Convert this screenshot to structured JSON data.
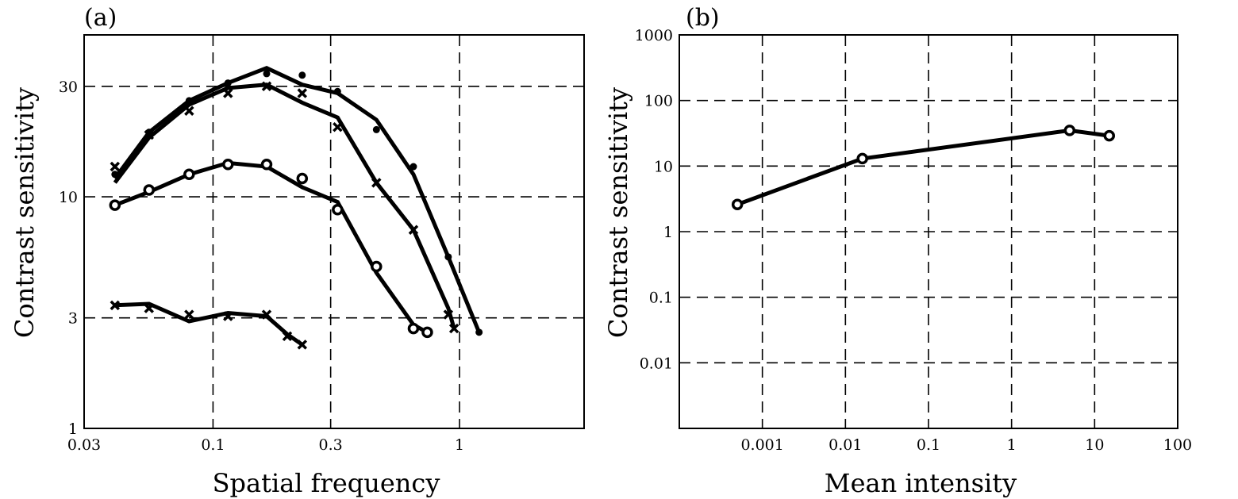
{
  "chart_data": [
    {
      "panel_label": "(a)",
      "type": "line",
      "xlabel": "Spatial frequency",
      "ylabel": "Contrast sensitivity",
      "xscale": "log",
      "yscale": "log",
      "xlim": [
        0.03,
        3.2
      ],
      "ylim": [
        1,
        50
      ],
      "x_ticks": [
        0.03,
        0.1,
        0.3,
        1
      ],
      "x_tick_labels": [
        "0.03",
        "0.1",
        "0.3",
        "1"
      ],
      "y_ticks": [
        1,
        3,
        10,
        30
      ],
      "y_tick_labels": [
        "1",
        "3",
        "10",
        "30"
      ],
      "grid": true,
      "series": [
        {
          "marker": "dot",
          "line_x": [
            0.04,
            0.055,
            0.08,
            0.115,
            0.165,
            0.23,
            0.32,
            0.46,
            0.65,
            0.9,
            1.2
          ],
          "line_y": [
            12,
            19,
            26,
            31,
            36,
            30.5,
            28,
            21.5,
            12.5,
            5.5,
            2.6
          ],
          "points_x": [
            0.04,
            0.055,
            0.08,
            0.115,
            0.165,
            0.23,
            0.32,
            0.46,
            0.65,
            0.9,
            1.2
          ],
          "points_y": [
            12.5,
            19,
            26,
            31,
            34,
            33.5,
            28.5,
            19.5,
            13.5,
            5.5,
            2.6
          ]
        },
        {
          "marker": "x",
          "line_x": [
            0.04,
            0.055,
            0.08,
            0.115,
            0.165,
            0.23,
            0.32,
            0.46,
            0.65,
            0.9,
            0.95
          ],
          "line_y": [
            11.5,
            18,
            25,
            29.5,
            30.5,
            25.5,
            22,
            11.5,
            7.2,
            3.3,
            2.7
          ],
          "points_x": [
            0.04,
            0.055,
            0.08,
            0.115,
            0.165,
            0.23,
            0.32,
            0.46,
            0.65,
            0.9,
            0.95
          ],
          "points_y": [
            13.5,
            18.5,
            23.5,
            28,
            30,
            28,
            20,
            11.5,
            7.2,
            3.1,
            2.7
          ]
        },
        {
          "marker": "circle",
          "line_x": [
            0.04,
            0.055,
            0.08,
            0.115,
            0.165,
            0.23,
            0.32,
            0.46,
            0.65,
            0.74
          ],
          "line_y": [
            9.2,
            10.5,
            12.5,
            14,
            13.5,
            11,
            9.5,
            4.7,
            2.8,
            2.6
          ],
          "points_x": [
            0.04,
            0.055,
            0.08,
            0.115,
            0.165,
            0.23,
            0.32,
            0.46,
            0.65,
            0.74
          ],
          "points_y": [
            9.2,
            10.7,
            12.5,
            13.8,
            13.8,
            12,
            8.8,
            5,
            2.7,
            2.6
          ]
        },
        {
          "marker": "x",
          "line_x": [
            0.04,
            0.055,
            0.08,
            0.115,
            0.165,
            0.2,
            0.23
          ],
          "line_y": [
            3.4,
            3.45,
            2.9,
            3.15,
            3.05,
            2.55,
            2.3
          ],
          "points_x": [
            0.04,
            0.055,
            0.08,
            0.115,
            0.165,
            0.2,
            0.23
          ],
          "points_y": [
            3.4,
            3.3,
            3.1,
            3.05,
            3.1,
            2.5,
            2.3
          ]
        }
      ]
    },
    {
      "panel_label": "(b)",
      "type": "line",
      "xlabel": "Mean intensity",
      "ylabel": "Contrast sensitivity",
      "xscale": "log",
      "yscale": "log",
      "xlim": [
        0.0001,
        100
      ],
      "ylim": [
        0.001,
        1000
      ],
      "x_ticks": [
        0.001,
        0.01,
        0.1,
        1,
        10,
        100
      ],
      "x_tick_labels": [
        "0.001",
        "0.01",
        "0.1",
        "1",
        "10",
        "100"
      ],
      "y_ticks": [
        0.01,
        0.1,
        1,
        10,
        100,
        1000
      ],
      "y_tick_labels": [
        "0.01",
        "0.1",
        "1",
        "10",
        "100",
        "1000"
      ],
      "grid": true,
      "series": [
        {
          "marker": "circle",
          "line_x": [
            0.0005,
            0.016,
            5,
            15
          ],
          "line_y": [
            2.6,
            13,
            35,
            29
          ],
          "points_x": [
            0.0005,
            0.016,
            5,
            15
          ],
          "points_y": [
            2.6,
            13,
            35,
            29
          ]
        }
      ]
    }
  ]
}
